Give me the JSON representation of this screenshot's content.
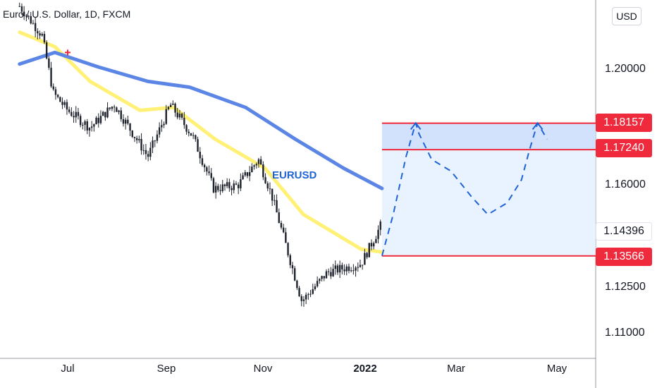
{
  "header": {
    "title": "Euro / U.S. Dollar, 1D, FXCM",
    "currency": "USD"
  },
  "symbol_label": "EURUSD",
  "colors": {
    "bull": "#1e222d",
    "bear": "#1e222d",
    "ma_fast": "#fff176",
    "ma_slow": "#5b86e5",
    "levels": "#ef2a3c",
    "zone": "#e3efff",
    "projection": "#1e63d6"
  },
  "price_tags": [
    {
      "value": "1.18157",
      "kind": "level"
    },
    {
      "value": "1.17240",
      "kind": "level"
    },
    {
      "value": "1.14396",
      "kind": "current"
    },
    {
      "value": "1.13566",
      "kind": "level"
    }
  ],
  "chart_data": {
    "type": "candlestick",
    "instrument": "Euro / U.S. Dollar",
    "timeframe": "1D",
    "y_ticks": [
      "1.20000",
      "1.16000",
      "1.12500",
      "1.11000"
    ],
    "x_ticks": [
      {
        "label": "Jul",
        "date": "2021-07-01"
      },
      {
        "label": "Sep",
        "date": "2021-09-01"
      },
      {
        "label": "Nov",
        "date": "2021-11-01"
      },
      {
        "label": "2022",
        "date": "2022-01-01",
        "bold": true
      },
      {
        "label": "Mar",
        "date": "2022-03-01"
      },
      {
        "label": "May",
        "date": "2022-05-01"
      }
    ],
    "price_path": [
      [
        "2021-06-01",
        1.222
      ],
      [
        "2021-06-15",
        1.212
      ],
      [
        "2021-06-22",
        1.192
      ],
      [
        "2021-07-01",
        1.186
      ],
      [
        "2021-07-15",
        1.18
      ],
      [
        "2021-07-30",
        1.188
      ],
      [
        "2021-08-20",
        1.17
      ],
      [
        "2021-09-03",
        1.188
      ],
      [
        "2021-09-17",
        1.177
      ],
      [
        "2021-09-30",
        1.159
      ],
      [
        "2021-10-15",
        1.16
      ],
      [
        "2021-10-28",
        1.169
      ],
      [
        "2021-11-05",
        1.157
      ],
      [
        "2021-11-24",
        1.12
      ],
      [
        "2021-12-10",
        1.13
      ],
      [
        "2021-12-31",
        1.133
      ],
      [
        "2022-01-13",
        1.147
      ]
    ],
    "series": [
      {
        "type": "line",
        "values": [
          [
            "2021-06-01",
            1.213
          ],
          [
            "2021-06-23",
            1.208
          ],
          [
            "2021-07-15",
            1.196
          ],
          [
            "2021-08-15",
            1.186
          ],
          [
            "2021-09-05",
            1.187
          ],
          [
            "2021-10-01",
            1.176
          ],
          [
            "2021-11-01",
            1.166
          ],
          [
            "2021-11-25",
            1.15
          ],
          [
            "2021-12-31",
            1.138
          ],
          [
            "2022-01-13",
            1.137
          ]
        ]
      },
      {
        "type": "line",
        "values": [
          [
            "2021-06-01",
            1.202
          ],
          [
            "2021-06-23",
            1.206
          ],
          [
            "2021-07-20",
            1.201
          ],
          [
            "2021-08-20",
            1.196
          ],
          [
            "2021-09-15",
            1.194
          ],
          [
            "2021-10-20",
            1.187
          ],
          [
            "2021-11-20",
            1.176
          ],
          [
            "2021-12-20",
            1.166
          ],
          [
            "2022-01-13",
            1.159
          ]
        ]
      }
    ],
    "levels": [
      1.18157,
      1.1724,
      1.13566
    ],
    "current_price": 1.14396,
    "zone": {
      "from_date": "2022-01-13",
      "to_date": "2022-05-31",
      "low": 1.13566,
      "high": 1.18157
    },
    "projection": [
      [
        "2022-01-13",
        1.1357
      ],
      [
        "2022-01-20",
        1.15
      ],
      [
        "2022-01-28",
        1.17
      ],
      [
        "2022-02-03",
        1.1816
      ],
      [
        "2022-02-05",
        1.178
      ],
      [
        "2022-02-13",
        1.169
      ],
      [
        "2022-02-25",
        1.165
      ],
      [
        "2022-03-10",
        1.156
      ],
      [
        "2022-03-20",
        1.15
      ],
      [
        "2022-04-01",
        1.154
      ],
      [
        "2022-04-10",
        1.162
      ],
      [
        "2022-04-15",
        1.1724
      ],
      [
        "2022-04-20",
        1.1816
      ],
      [
        "2022-04-26",
        1.176
      ]
    ]
  }
}
